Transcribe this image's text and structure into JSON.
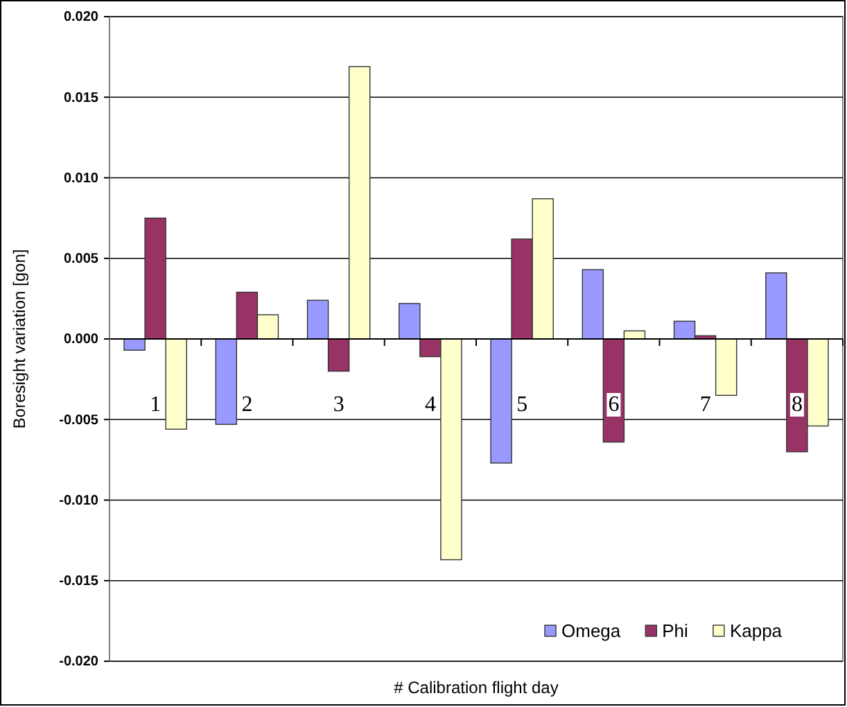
{
  "chart_data": {
    "type": "bar",
    "xlabel": "# Calibration flight day",
    "ylabel": "Boresight variation [gon]",
    "categories": [
      "1",
      "2",
      "3",
      "4",
      "5",
      "6",
      "7",
      "8"
    ],
    "series": [
      {
        "name": "Omega",
        "color": "#9999ff",
        "values": [
          -0.0007,
          -0.0053,
          0.0024,
          0.0022,
          -0.0077,
          0.0043,
          0.0011,
          0.0041
        ]
      },
      {
        "name": "Phi",
        "color": "#993366",
        "values": [
          0.0075,
          0.0029,
          -0.002,
          -0.0011,
          0.0062,
          -0.0064,
          0.0002,
          -0.007
        ]
      },
      {
        "name": "Kappa",
        "color": "#ffffcc",
        "values": [
          -0.0056,
          0.0015,
          0.0169,
          -0.0137,
          0.0087,
          0.0005,
          -0.0035,
          -0.0054
        ]
      }
    ],
    "ylim": [
      -0.02,
      0.02
    ],
    "yticks": [
      {
        "value": 0.02,
        "label": "0.020"
      },
      {
        "value": 0.015,
        "label": "0.015"
      },
      {
        "value": 0.01,
        "label": "0.010"
      },
      {
        "value": 0.005,
        "label": "0.005"
      },
      {
        "value": 0,
        "label": "0.000"
      },
      {
        "value": -0.005,
        "label": "-0.005"
      },
      {
        "value": -0.01,
        "label": "-0.010"
      },
      {
        "value": -0.015,
        "label": "-0.015"
      },
      {
        "value": -0.02,
        "label": "-0.020"
      }
    ],
    "grid": "y",
    "legend": "bottom right"
  }
}
